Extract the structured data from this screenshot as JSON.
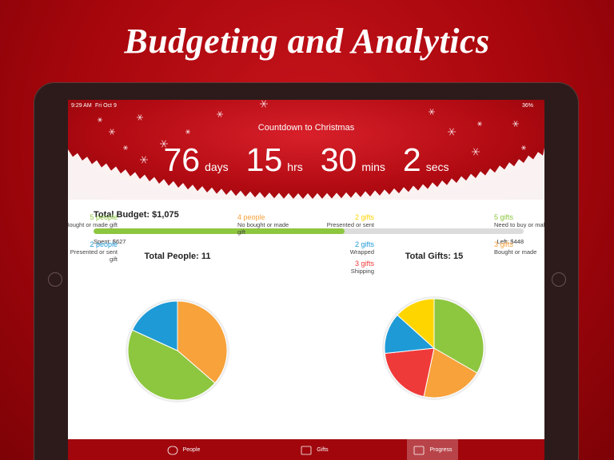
{
  "header": {
    "title": "Budgeting and Analytics"
  },
  "status_bar": {
    "time": "9:29 AM",
    "date": "Fri Oct 9",
    "battery": "36%"
  },
  "countdown": {
    "title": "Countdown to Christmas",
    "units": [
      {
        "value": 76,
        "label": "days"
      },
      {
        "value": 15,
        "label": "hrs"
      },
      {
        "value": 30,
        "label": "mins"
      },
      {
        "value": 2,
        "label": "secs"
      }
    ]
  },
  "budget": {
    "title": "Total Budget: $1,075",
    "total": 1075,
    "spent": 627,
    "spent_label": "Spent: $627",
    "left_label": "Left: $448"
  },
  "chart_data": [
    {
      "type": "pie",
      "title": "Total People: 11",
      "categories": [
        "No bought or made gift",
        "Bought or made gift",
        "Presented or sent gift"
      ],
      "values": [
        4,
        5,
        2
      ],
      "value_labels": [
        "4 people",
        "5 people",
        "2 people"
      ],
      "colors": [
        "#f7a23b",
        "#8dc63f",
        "#1e9ad6"
      ]
    },
    {
      "type": "pie",
      "title": "Total Gifts: 15",
      "categories": [
        "Need to buy or make",
        "Bought or made",
        "Shipping",
        "Wrapped",
        "Presented or sent"
      ],
      "values": [
        5,
        3,
        3,
        2,
        2
      ],
      "value_labels": [
        "5 gifts",
        "3 gifts",
        "3 gifts",
        "2 gifts",
        "2 gifts"
      ],
      "colors": [
        "#8dc63f",
        "#f7a23b",
        "#ef3a3a",
        "#1e9ad6",
        "#ffd500"
      ]
    }
  ],
  "tabs": {
    "items": [
      "People",
      "Gifts",
      "Progress"
    ],
    "selected": 2
  }
}
